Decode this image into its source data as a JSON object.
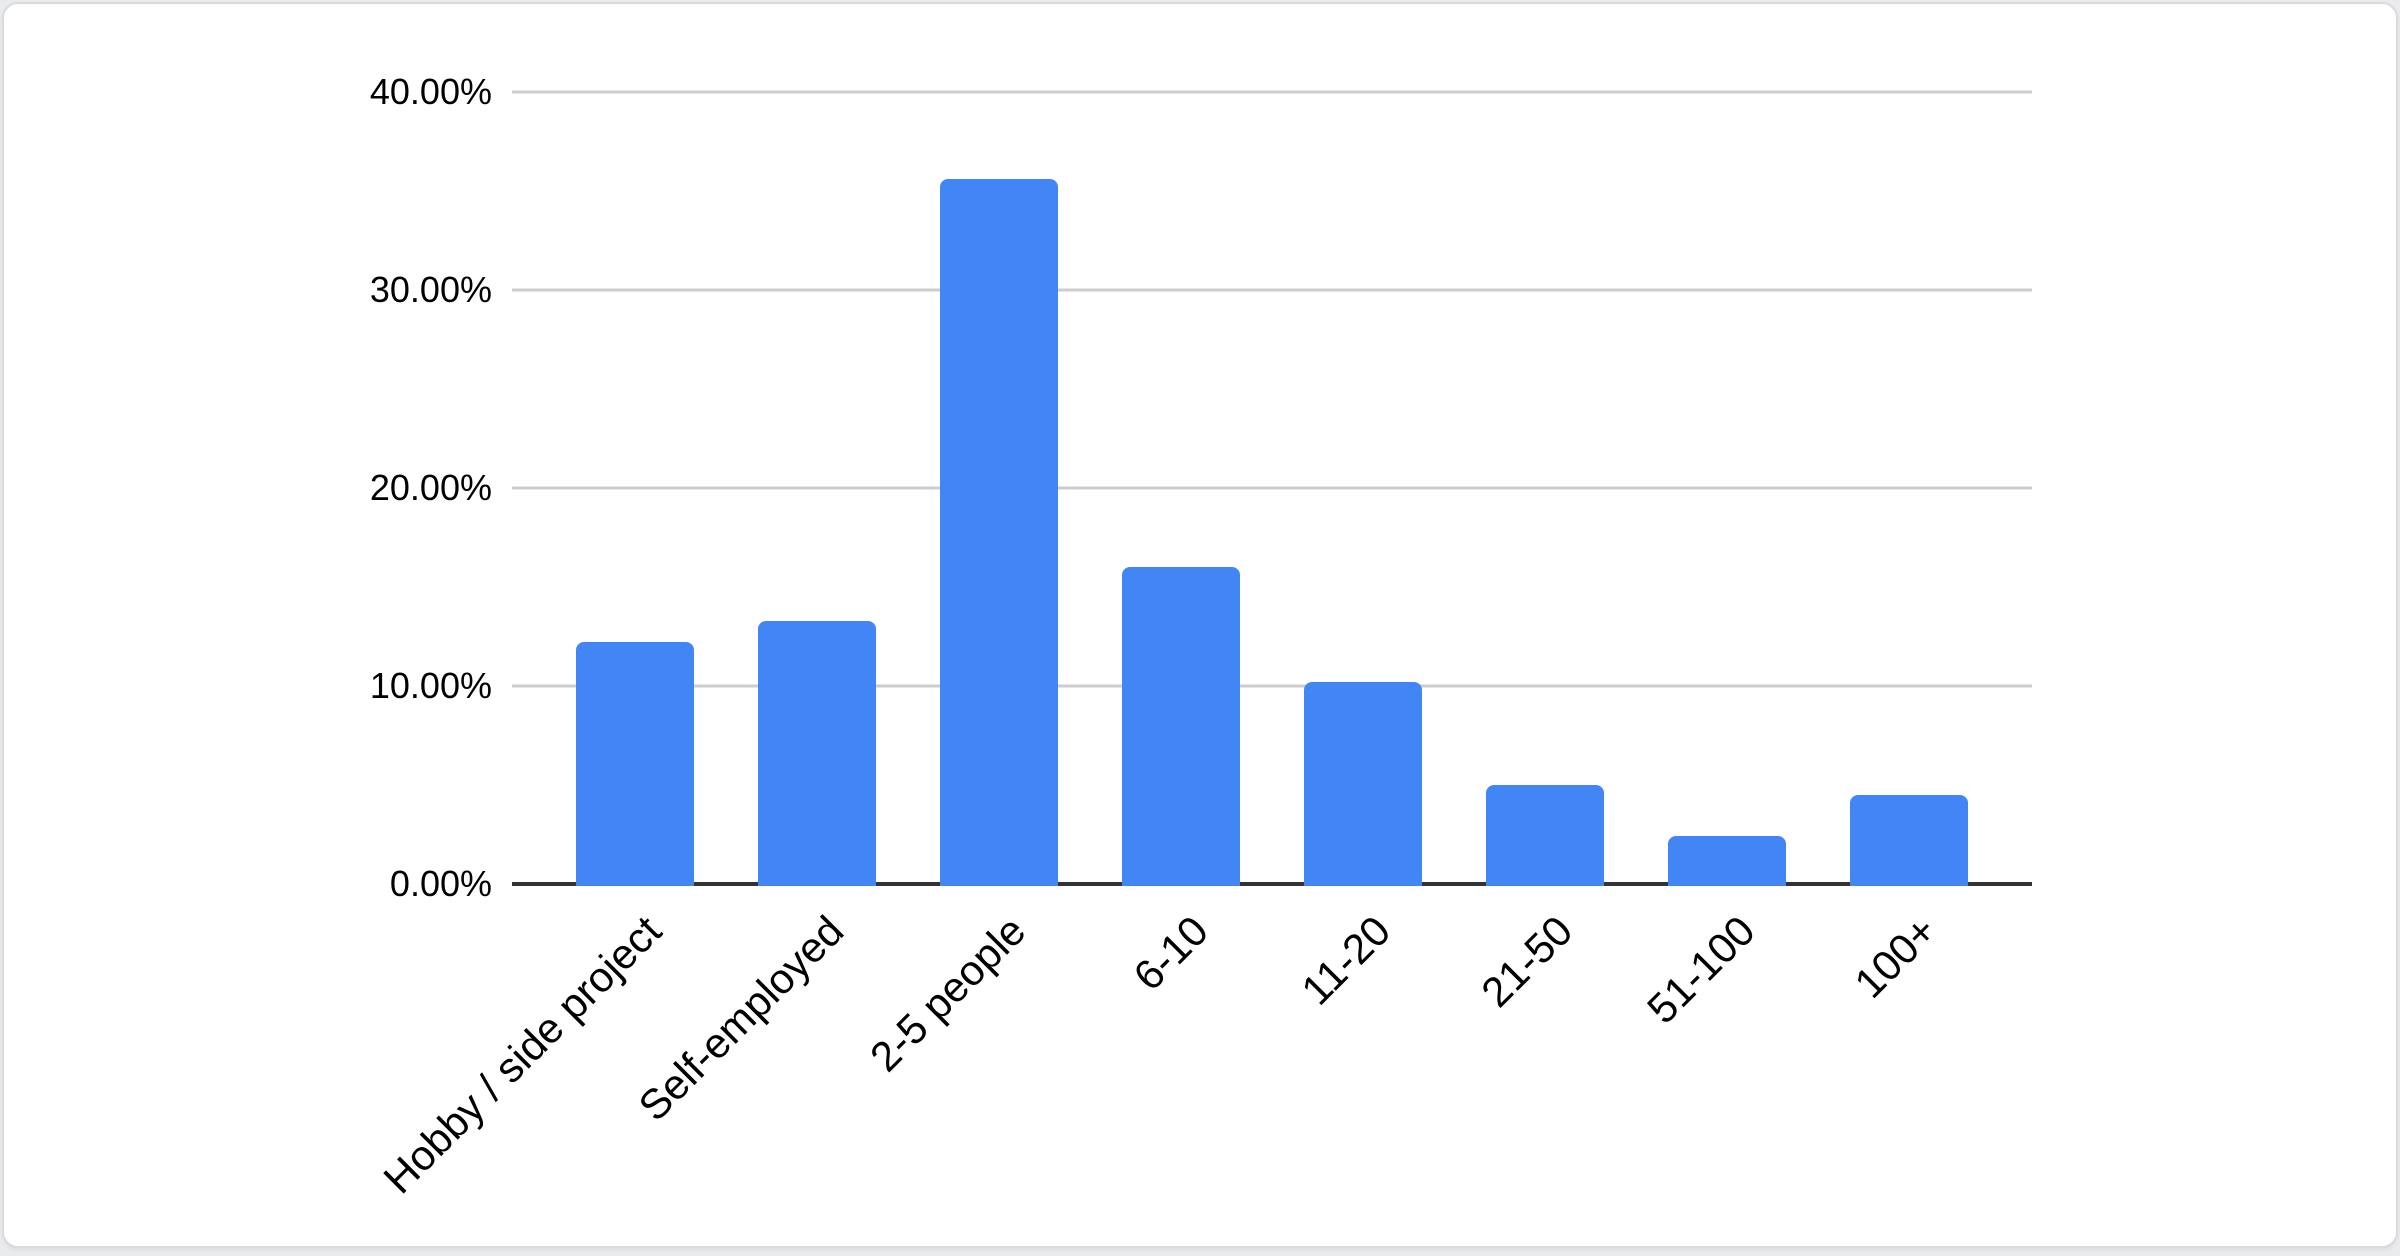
{
  "chart_data": {
    "type": "bar",
    "categories": [
      "Hobby / side project",
      "Self-employed",
      "2-5 people",
      "6-10",
      "11-20",
      "21-50",
      "51-100",
      "100+"
    ],
    "values": [
      12.2,
      13.3,
      35.6,
      16.0,
      10.2,
      5.0,
      2.4,
      4.5
    ],
    "y_ticks": [
      {
        "label": "0.00%",
        "value": 0
      },
      {
        "label": "10.00%",
        "value": 10
      },
      {
        "label": "20.00%",
        "value": 20
      },
      {
        "label": "30.00%",
        "value": 30
      },
      {
        "label": "40.00%",
        "value": 40
      }
    ],
    "ylim": [
      0,
      40
    ],
    "title": "",
    "xlabel": "",
    "ylabel": "",
    "legend": "none",
    "grid": true,
    "bar_color": "#4285f4",
    "gridline_color": "#cccccc",
    "axis_color": "#333333",
    "label_color": "#000000"
  }
}
